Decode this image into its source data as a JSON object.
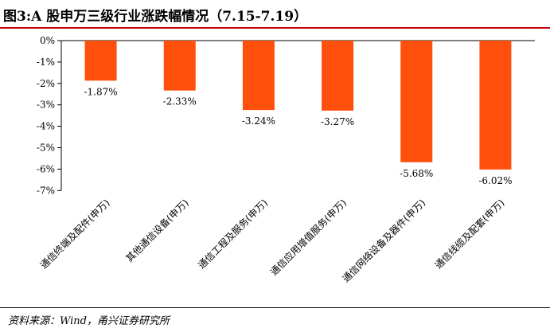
{
  "title": "图3:A 股申万三级行业涨跌幅情况（7.15-7.19）",
  "source": "资料来源：Wind，甬兴证券研究所",
  "colors": {
    "bar": "#ff4f0d",
    "axis": "#000000"
  },
  "chart_data": {
    "type": "bar",
    "categories": [
      "通信终端及配件(申万)",
      "其他通信设备(申万)",
      "通信工程及服务(申万)",
      "通信应用增值服务(申万)",
      "通信网络设备及器件(申万)",
      "通信线缆及配套(申万)"
    ],
    "values": [
      -1.87,
      -2.33,
      -3.24,
      -3.27,
      -5.68,
      -6.02
    ],
    "data_labels": [
      "-1.87%",
      "-2.33%",
      "-3.24%",
      "-3.27%",
      "-5.68%",
      "-6.02%"
    ],
    "yticks": [
      "0%",
      "-1%",
      "-2%",
      "-3%",
      "-4%",
      "-5%",
      "-6%",
      "-7%"
    ],
    "ylim": [
      -7,
      0
    ],
    "grid": false,
    "legend": "none"
  }
}
